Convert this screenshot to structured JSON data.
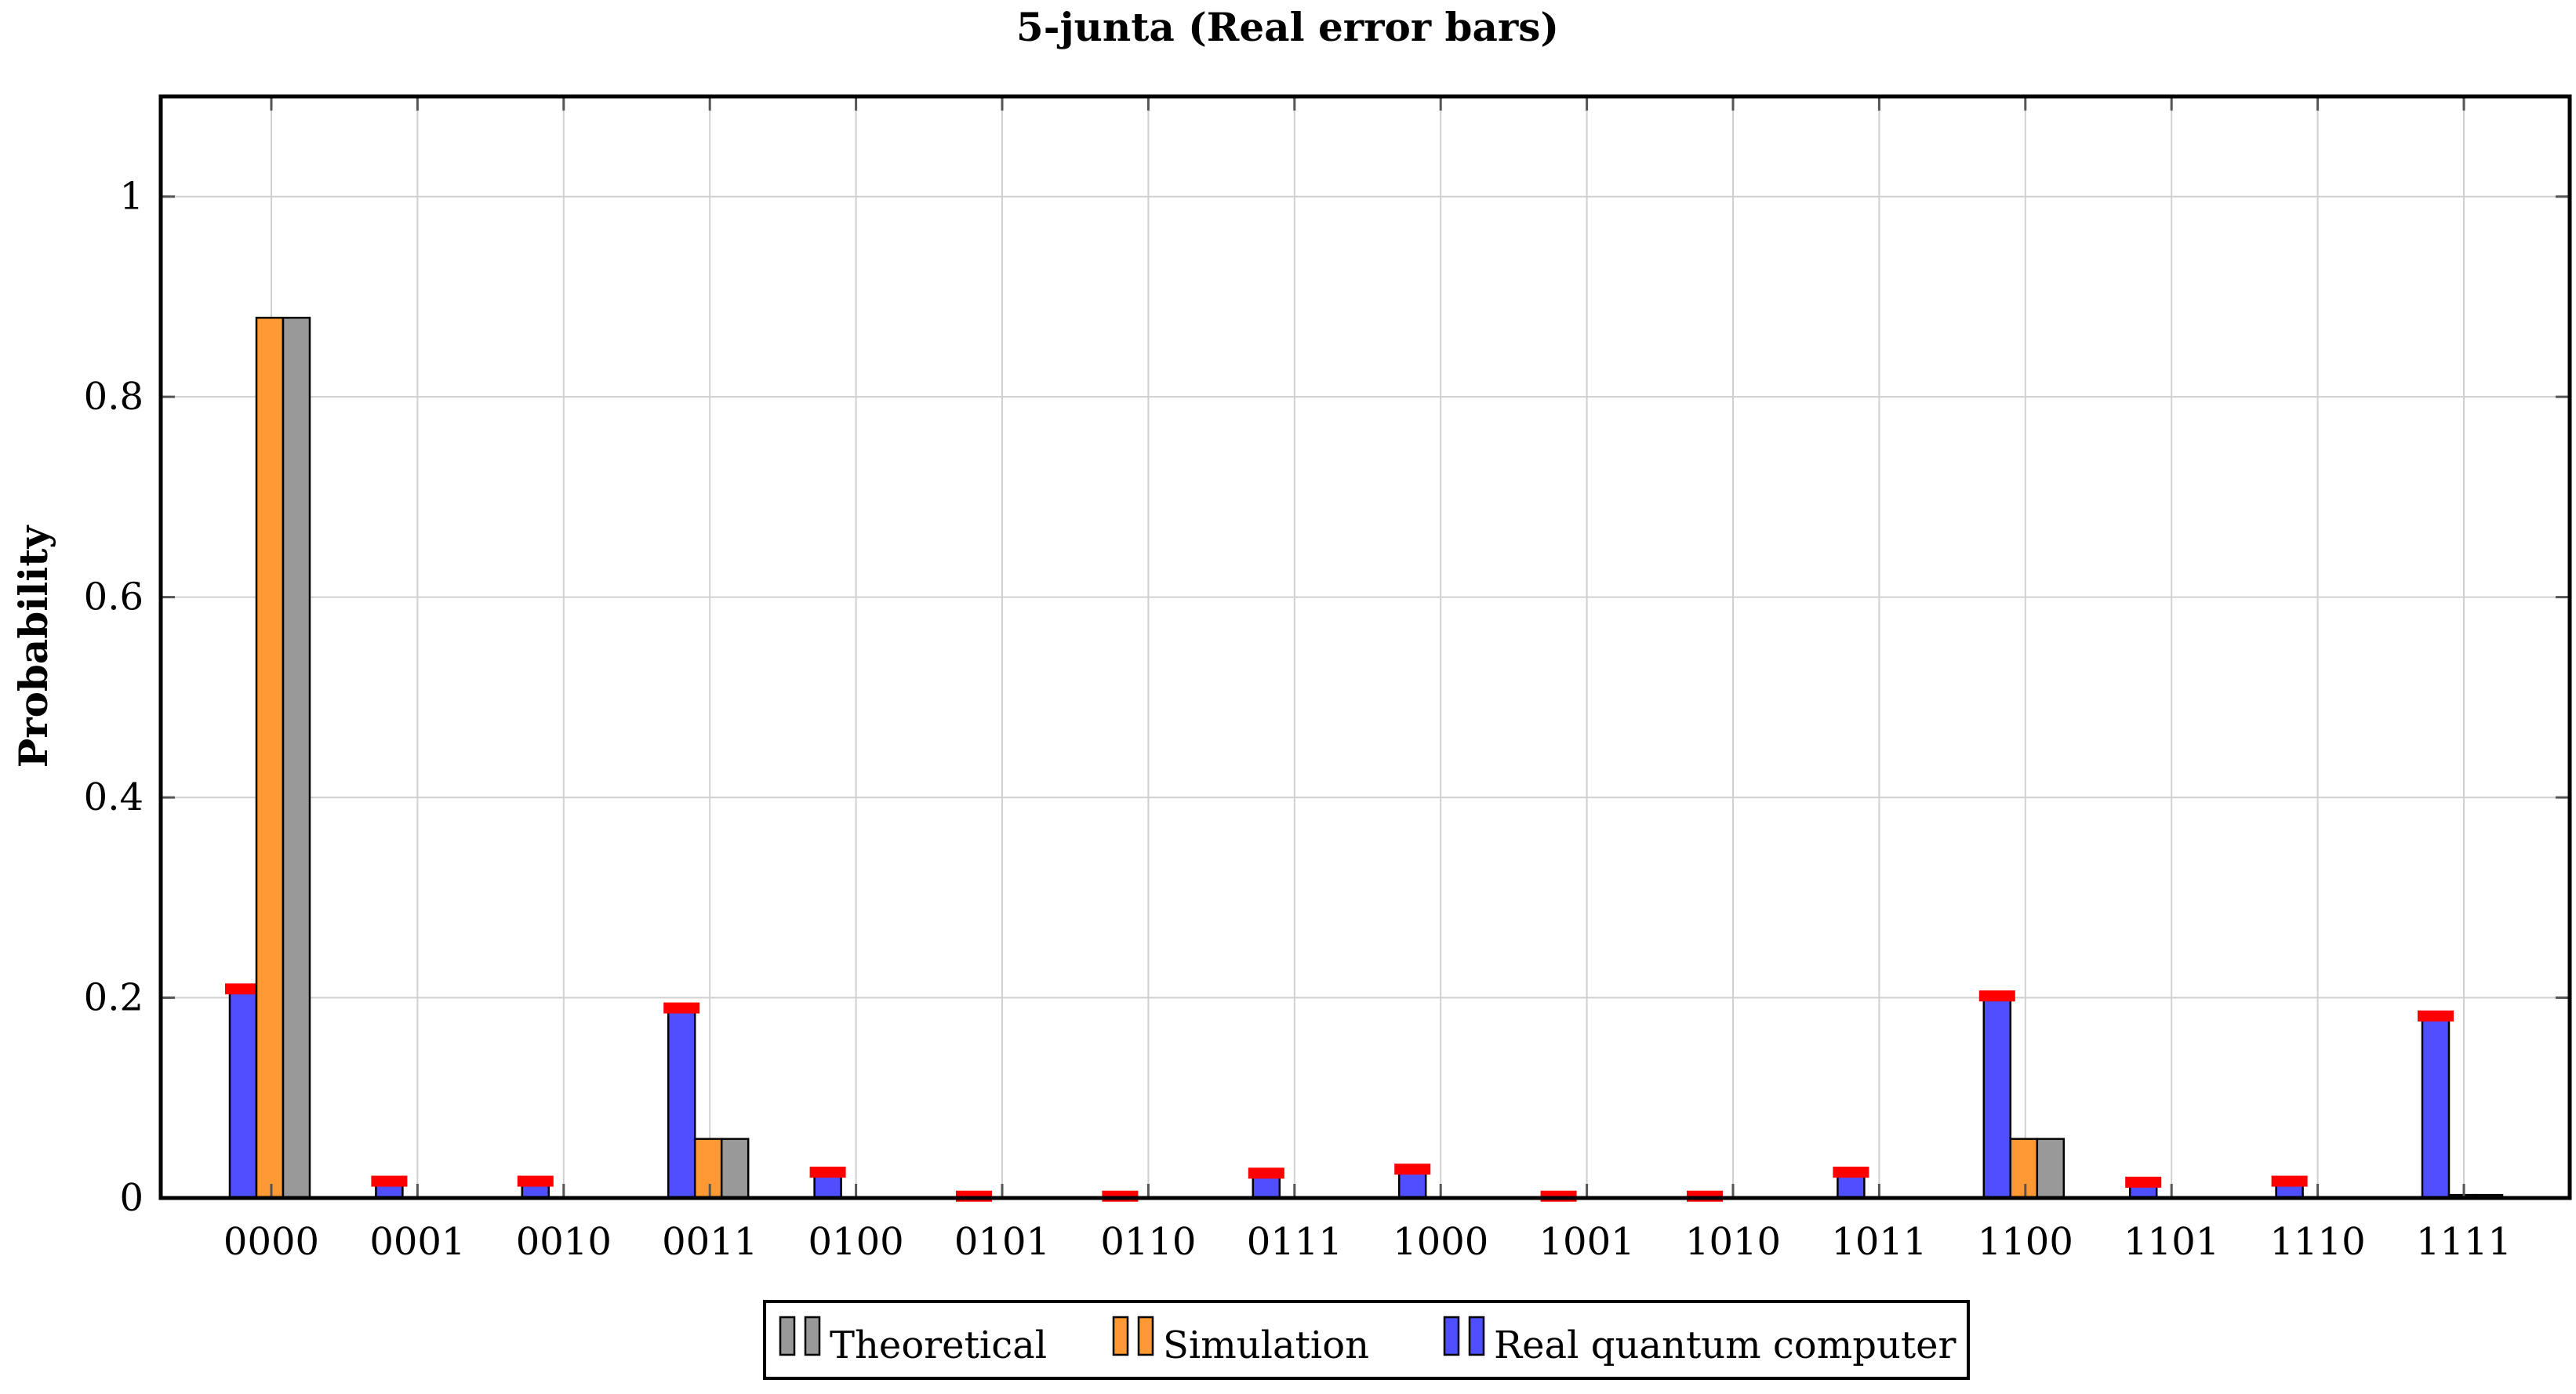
{
  "chart_data": {
    "type": "bar",
    "title": "5-junta (Real error bars)",
    "xlabel": "",
    "ylabel": "Probability",
    "ylim": [
      0,
      1.1
    ],
    "yticks": [
      0,
      0.2,
      0.4,
      0.6,
      0.8,
      1
    ],
    "ytick_labels": [
      "0",
      "0.2",
      "0.4",
      "0.6",
      "0.8",
      "1"
    ],
    "grid": true,
    "legend_position": "bottom-center",
    "categories": [
      "0000",
      "0001",
      "0010",
      "0011",
      "0100",
      "0101",
      "0110",
      "0111",
      "1000",
      "1001",
      "1010",
      "1011",
      "1100",
      "1101",
      "1110",
      "1111"
    ],
    "series": [
      {
        "name": "Real quantum computer",
        "color": "#4f4fff",
        "values": [
          0.208,
          0.016,
          0.016,
          0.189,
          0.025,
          0.001,
          0.001,
          0.024,
          0.028,
          0.001,
          0.001,
          0.025,
          0.201,
          0.015,
          0.016,
          0.181
        ],
        "error_color": "#ff0000"
      },
      {
        "name": "Simulation",
        "color": "#ff9933",
        "values": [
          0.879,
          0.0,
          0.0,
          0.059,
          0.0,
          0.0,
          0.0,
          0.0,
          0.0,
          0.0,
          0.0,
          0.0,
          0.059,
          0.0,
          0.0,
          0.003
        ]
      },
      {
        "name": "Theoretical",
        "color": "#999999",
        "values": [
          0.879,
          0.0,
          0.0,
          0.059,
          0.0,
          0.0,
          0.0,
          0.0,
          0.0,
          0.0,
          0.0,
          0.0,
          0.059,
          0.0,
          0.0,
          0.003
        ]
      }
    ],
    "legend": [
      "Theoretical",
      "Simulation",
      "Real quantum computer"
    ]
  }
}
